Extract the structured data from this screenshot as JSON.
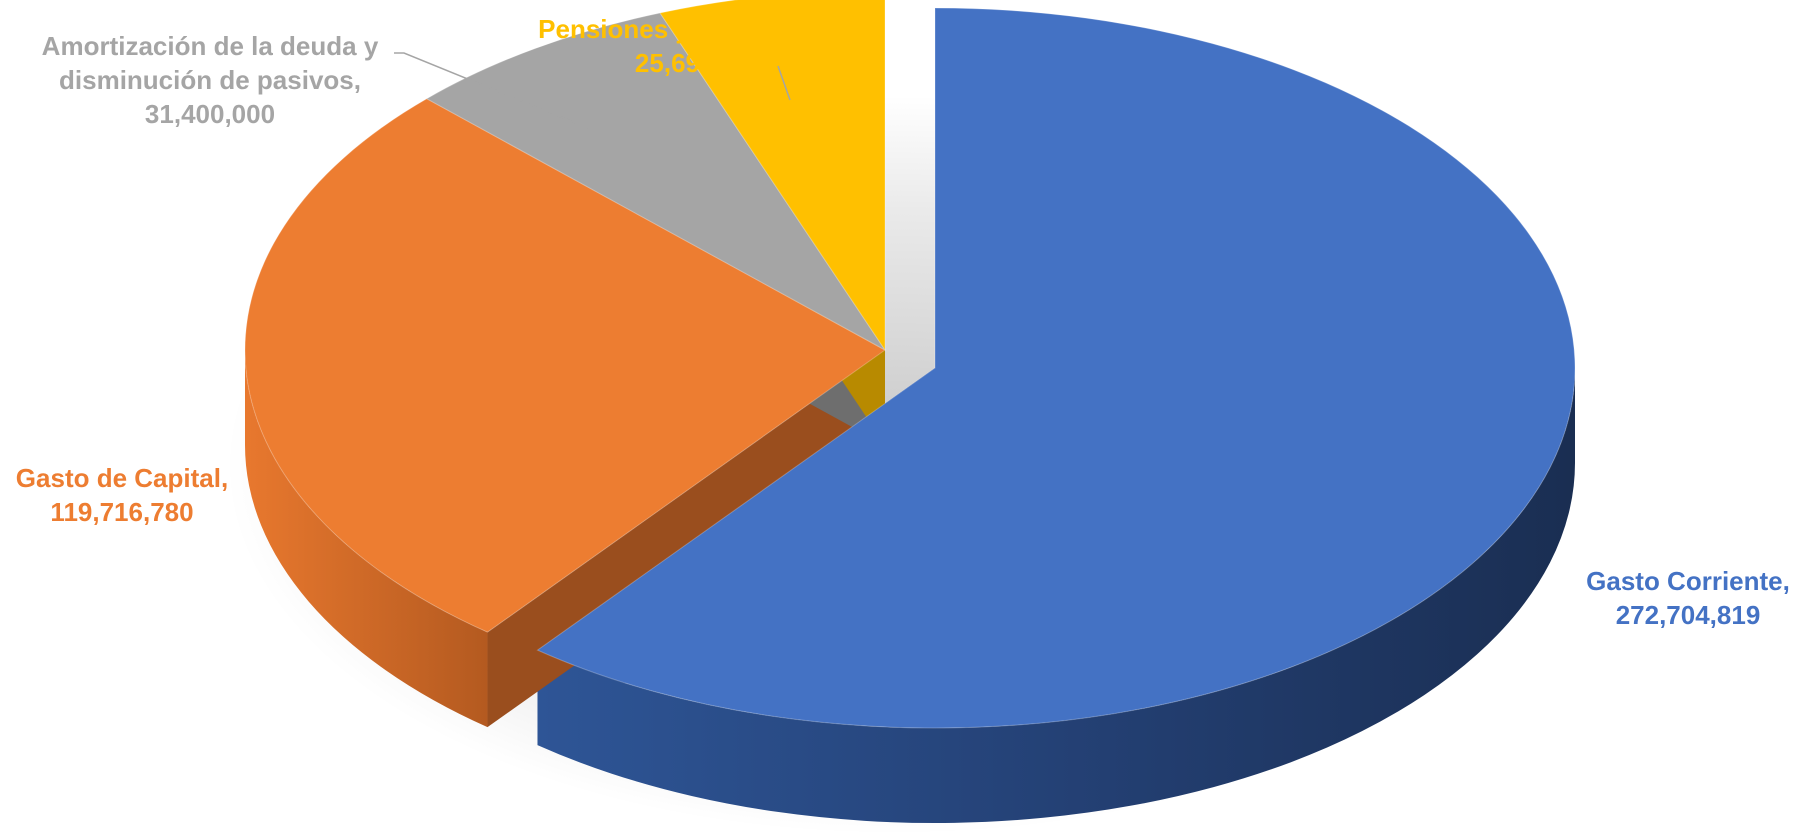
{
  "chart_data": {
    "type": "pie",
    "title": "",
    "slices": [
      {
        "label": "Gasto Corriente",
        "value": 272704819,
        "value_text": "272,704,819",
        "color": "#4472C4",
        "dark": "#1F3668",
        "exploded": true
      },
      {
        "label": "Gasto de Capital",
        "value": 119716780,
        "value_text": "119,716,780",
        "color": "#ED7D31",
        "dark": "#9A4E1E",
        "exploded": false
      },
      {
        "label": "Amortización de la deuda y disminución de pasivos",
        "value": 31400000,
        "value_text": "31,400,000",
        "color": "#A5A5A5",
        "dark": "#6E6E6E",
        "exploded": false
      },
      {
        "label": "Pensiones y Jubilaciones",
        "value": 25696536,
        "value_text": "25,696,536",
        "color": "#FFC000",
        "dark": "#B88A00",
        "exploded": false
      }
    ],
    "labels": [
      {
        "lines": [
          "Gasto Corriente,",
          "272,704,819"
        ],
        "color": "#4472C4"
      },
      {
        "lines": [
          "Gasto de Capital,",
          "119,716,780"
        ],
        "color": "#ED7D31"
      },
      {
        "lines": [
          "Amortización de la deuda y",
          "disminución de pasivos,",
          "31,400,000"
        ],
        "color": "#A5A5A5"
      },
      {
        "lines": [
          "Pensiones y Jubilaciones,",
          "25,696,536"
        ],
        "color": "#FFC000"
      }
    ],
    "style": "3d-exploded-pie",
    "legend": "none"
  }
}
